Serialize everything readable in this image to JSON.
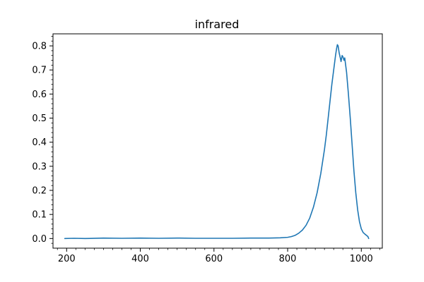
{
  "chart_data": {
    "type": "line",
    "title": "infrared",
    "xlabel": "",
    "ylabel": "",
    "xlim": [
      163,
      1057
    ],
    "ylim": [
      -0.04,
      0.85
    ],
    "xticks": [
      200,
      400,
      600,
      800,
      1000
    ],
    "yticks": [
      0.0,
      0.1,
      0.2,
      0.3,
      0.4,
      0.5,
      0.6,
      0.7,
      0.8
    ],
    "xtick_labels": [
      "200",
      "400",
      "600",
      "800",
      "1000"
    ],
    "ytick_labels": [
      "0.0",
      "0.1",
      "0.2",
      "0.3",
      "0.4",
      "0.5",
      "0.6",
      "0.7",
      "0.8"
    ],
    "grid": false,
    "legend": false,
    "series": [
      {
        "color": "#1f77b4",
        "x": [
          195,
          220,
          250,
          300,
          350,
          400,
          450,
          500,
          550,
          600,
          650,
          700,
          750,
          780,
          800,
          810,
          820,
          830,
          840,
          850,
          860,
          870,
          880,
          890,
          900,
          905,
          910,
          915,
          920,
          925,
          930,
          933,
          935,
          937,
          940,
          943,
          945,
          948,
          950,
          953,
          955,
          960,
          965,
          970,
          975,
          980,
          985,
          990,
          995,
          1000,
          1005,
          1010,
          1015,
          1018,
          1020
        ],
        "y": [
          0.0,
          0.001,
          0.0,
          0.002,
          0.001,
          0.002,
          0.001,
          0.002,
          0.001,
          0.001,
          0.001,
          0.002,
          0.002,
          0.003,
          0.005,
          0.008,
          0.013,
          0.022,
          0.035,
          0.055,
          0.085,
          0.13,
          0.19,
          0.27,
          0.37,
          0.43,
          0.5,
          0.57,
          0.64,
          0.7,
          0.76,
          0.79,
          0.805,
          0.8,
          0.77,
          0.75,
          0.735,
          0.76,
          0.755,
          0.74,
          0.75,
          0.69,
          0.6,
          0.5,
          0.39,
          0.28,
          0.19,
          0.12,
          0.07,
          0.04,
          0.025,
          0.018,
          0.012,
          0.008,
          0.0
        ]
      }
    ]
  }
}
